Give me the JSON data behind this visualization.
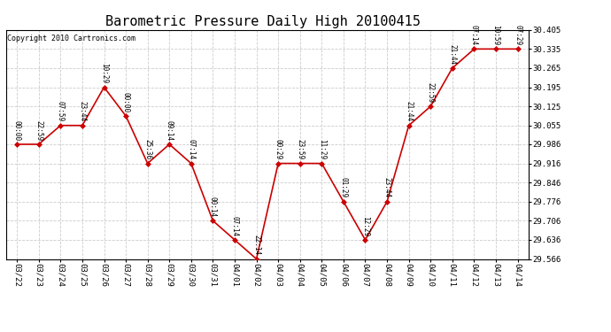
{
  "title": "Barometric Pressure Daily High 20100415",
  "copyright": "Copyright 2010 Cartronics.com",
  "x_labels": [
    "03/22",
    "03/23",
    "03/24",
    "03/25",
    "03/26",
    "03/27",
    "03/28",
    "03/29",
    "03/30",
    "03/31",
    "04/01",
    "04/02",
    "04/03",
    "04/04",
    "04/05",
    "04/06",
    "04/07",
    "04/08",
    "04/09",
    "04/10",
    "04/11",
    "04/12",
    "04/13",
    "04/14"
  ],
  "y_values": [
    29.986,
    29.986,
    30.055,
    30.055,
    30.195,
    30.09,
    29.916,
    29.986,
    29.916,
    29.706,
    29.636,
    29.566,
    29.916,
    29.916,
    29.916,
    29.776,
    29.636,
    29.776,
    30.055,
    30.125,
    30.265,
    30.335,
    30.335,
    30.335
  ],
  "point_labels": [
    "00:00",
    "22:59",
    "07:59",
    "23:44",
    "10:29",
    "00:00",
    "25:36",
    "09:14",
    "07:14",
    "00:14",
    "07:14",
    "22:14",
    "00:29",
    "23:59",
    "11:29",
    "01:29",
    "12:29",
    "23:44",
    "21:44",
    "22:59",
    "21:44",
    "07:14",
    "10:59",
    "07:29"
  ],
  "ylim_min": 29.566,
  "ylim_max": 30.405,
  "yticks": [
    29.566,
    29.636,
    29.706,
    29.776,
    29.846,
    29.916,
    29.986,
    30.055,
    30.125,
    30.195,
    30.265,
    30.335,
    30.405
  ],
  "line_color": "#cc0000",
  "marker_color": "#cc0000",
  "background_color": "#ffffff",
  "grid_color": "#cccccc",
  "title_fontsize": 11,
  "label_fontsize": 5.5,
  "tick_fontsize": 6.5,
  "copyright_fontsize": 6
}
